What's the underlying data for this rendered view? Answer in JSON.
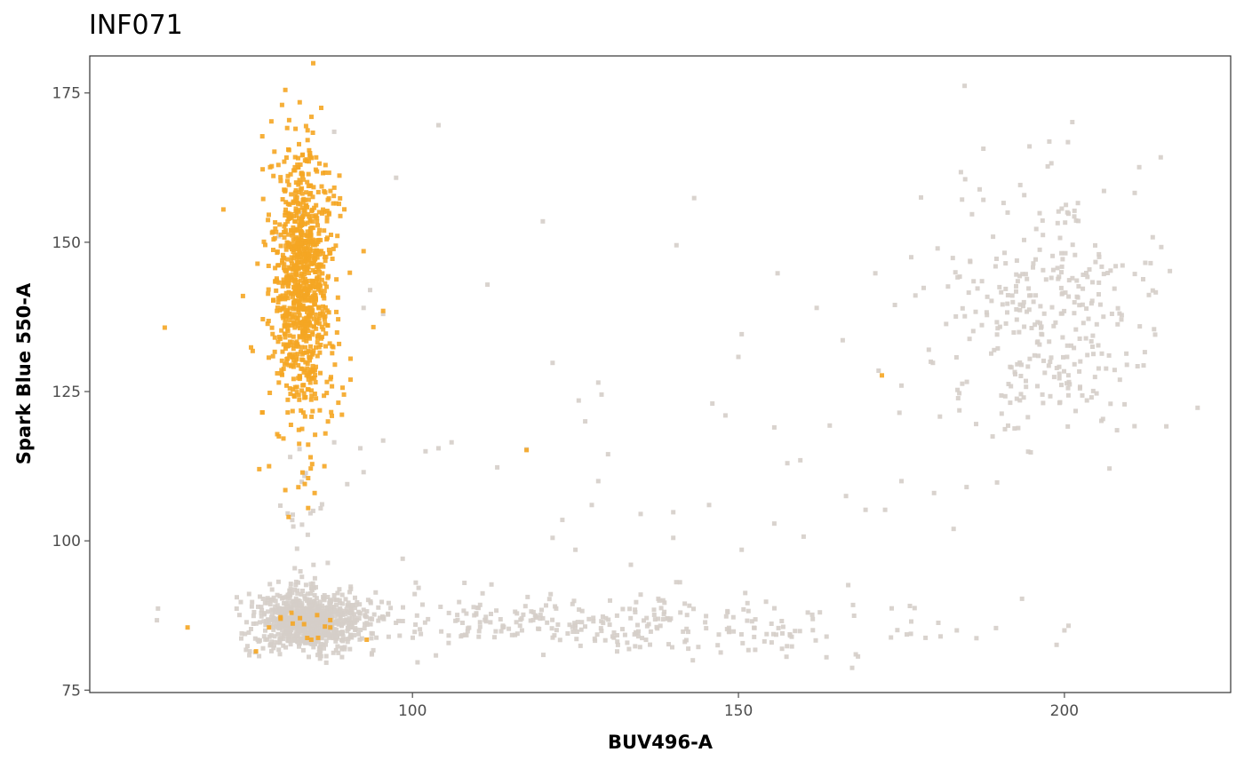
{
  "chart_data": {
    "type": "scatter",
    "title": "INF071",
    "xlabel": "BUV496-A",
    "ylabel": "Spark Blue 550-A",
    "xlim": [
      50.5,
      225.5
    ],
    "ylim": [
      74.6,
      181.2
    ],
    "x_ticks": [
      100,
      150,
      200
    ],
    "y_ticks": [
      75,
      100,
      125,
      150,
      175
    ],
    "grid": false,
    "legend": "none",
    "colors": {
      "gated": "#f5a623",
      "ungated": "#d5cec9",
      "frame": "#333333",
      "ticks": "#4d4d4d"
    },
    "series": [
      {
        "color": "#d5cec9",
        "clusters": [
          {
            "cx": 84,
            "cy": 86.5,
            "sx": 4.2,
            "sy": 2.4,
            "n": 900
          },
          {
            "cx": 130,
            "cy": 86,
            "sx": 22,
            "sy": 2.5,
            "n": 300
          },
          {
            "cx": 198,
            "cy": 137,
            "sx": 8.5,
            "sy": 12,
            "n": 330
          },
          {
            "cx": 84,
            "cy": 100,
            "sx": 2.2,
            "sy": 6,
            "n": 35
          }
        ],
        "points": [
          [
            60.8,
            86.7
          ],
          [
            104.0,
            169.6
          ],
          [
            97.5,
            160.8
          ],
          [
            95.5,
            138.0
          ],
          [
            88.0,
            168.5
          ],
          [
            143.2,
            157.4
          ],
          [
            140.5,
            149.5
          ],
          [
            111.5,
            142.9
          ],
          [
            120.0,
            153.5
          ],
          [
            150.5,
            134.6
          ],
          [
            150.0,
            130.8
          ],
          [
            156.0,
            144.8
          ],
          [
            162.0,
            139.0
          ],
          [
            166.0,
            133.6
          ],
          [
            171.0,
            144.8
          ],
          [
            171.5,
            128.5
          ],
          [
            178.0,
            157.5
          ],
          [
            176.5,
            147.5
          ],
          [
            174.0,
            139.5
          ],
          [
            179.5,
            130.0
          ],
          [
            175.0,
            126.0
          ],
          [
            175.0,
            110.0
          ],
          [
            180.0,
            108.0
          ],
          [
            185.0,
            109.0
          ],
          [
            183.0,
            102.0
          ],
          [
            172.5,
            105.2
          ],
          [
            166.5,
            107.5
          ],
          [
            159.5,
            113.5
          ],
          [
            157.5,
            113.0
          ],
          [
            160.0,
            100.7
          ],
          [
            155.5,
            102.9
          ],
          [
            145.5,
            106.0
          ],
          [
            140.0,
            100.5
          ],
          [
            150.5,
            98.5
          ],
          [
            135.0,
            91.0
          ],
          [
            133.5,
            96.0
          ],
          [
            123.0,
            103.5
          ],
          [
            121.5,
            100.5
          ],
          [
            125.0,
            98.5
          ],
          [
            127.5,
            106.0
          ],
          [
            128.5,
            110.0
          ],
          [
            130.0,
            114.5
          ],
          [
            128.5,
            126.5
          ],
          [
            129.0,
            124.5
          ],
          [
            126.5,
            120.0
          ],
          [
            125.5,
            123.5
          ],
          [
            121.5,
            129.8
          ],
          [
            117.5,
            115.3
          ],
          [
            113.0,
            112.3
          ],
          [
            106.0,
            116.5
          ],
          [
            102.0,
            115.0
          ],
          [
            104.0,
            115.5
          ],
          [
            98.5,
            97.0
          ],
          [
            100.5,
            93.0
          ],
          [
            135.0,
            104.5
          ],
          [
            140.0,
            104.8
          ],
          [
            146.0,
            123.0
          ],
          [
            148.0,
            121.0
          ],
          [
            155.5,
            119.0
          ],
          [
            164.0,
            119.3
          ],
          [
            169.5,
            105.2
          ],
          [
            193.5,
            90.3
          ],
          [
            200.0,
            85.0
          ],
          [
            173.5,
            88.7
          ],
          [
            176.5,
            86.5
          ],
          [
            181.0,
            84.0
          ],
          [
            95.5,
            116.8
          ],
          [
            92.0,
            115.5
          ],
          [
            92.5,
            111.5
          ],
          [
            88.0,
            116.5
          ],
          [
            90.0,
            109.5
          ],
          [
            93.5,
            142.0
          ],
          [
            92.5,
            139.0
          ],
          [
            83.0,
            154.8
          ],
          [
            79.5,
            151.0
          ],
          [
            186.5,
            83.7
          ],
          [
            183.5,
            85.0
          ],
          [
            189.5,
            85.4
          ],
          [
            163.5,
            80.5
          ],
          [
            143.0,
            80.0
          ],
          [
            168.0,
            81.0
          ]
        ]
      },
      {
        "color": "#f5a623",
        "clusters": [
          {
            "cx": 83.2,
            "cy": 143,
            "sx": 2.3,
            "sy": 11,
            "n": 950
          },
          {
            "cx": 84.5,
            "cy": 86,
            "sx": 2.5,
            "sy": 2,
            "n": 14
          }
        ],
        "points": [
          [
            62.0,
            135.7
          ],
          [
            71.0,
            155.5
          ],
          [
            74.0,
            141.0
          ],
          [
            75.5,
            131.8
          ],
          [
            77.0,
            121.5
          ],
          [
            79.5,
            126.5
          ],
          [
            80.5,
            175.5
          ],
          [
            80.0,
            173.0
          ],
          [
            79.5,
            117.5
          ],
          [
            80.5,
            108.5
          ],
          [
            81.0,
            104.0
          ],
          [
            85.0,
            108.0
          ],
          [
            84.0,
            110.5
          ],
          [
            86.5,
            112.5
          ],
          [
            92.5,
            148.5
          ],
          [
            95.5,
            138.5
          ],
          [
            94.0,
            135.8
          ],
          [
            90.5,
            130.5
          ],
          [
            90.5,
            127.0
          ],
          [
            89.5,
            124.5
          ],
          [
            78.0,
            112.5
          ],
          [
            76.5,
            112.0
          ],
          [
            86.0,
            172.5
          ],
          [
            84.5,
            171.0
          ],
          [
            65.5,
            85.5
          ],
          [
            78.0,
            85.5
          ],
          [
            76.0,
            81.5
          ],
          [
            172.0,
            127.7
          ],
          [
            117.5,
            115.2
          ],
          [
            84.0,
            105.5
          ]
        ]
      }
    ]
  }
}
